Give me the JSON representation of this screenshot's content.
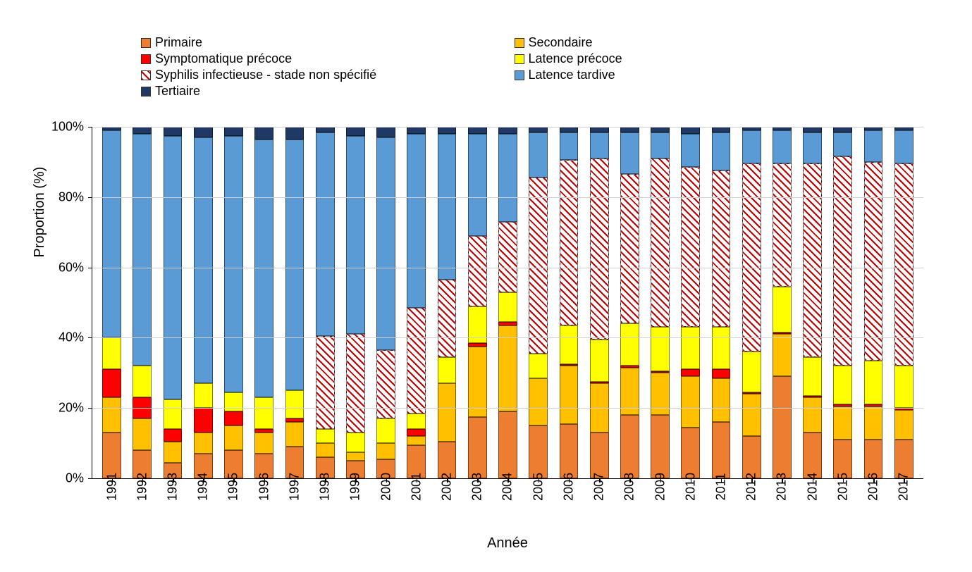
{
  "chart": {
    "type": "stacked-bar",
    "background_color": "#ffffff",
    "grid_color": "#d0d0d0",
    "axis_color": "#000000",
    "bar_width_ratio": 0.62,
    "yaxis": {
      "label": "Proportion (%)",
      "min": 0,
      "max": 100,
      "tick_step": 20,
      "tick_suffix": "%",
      "label_fontsize": 20,
      "tick_fontsize": 18
    },
    "xaxis": {
      "label": "Année",
      "label_fontsize": 20,
      "tick_fontsize": 18,
      "tick_rotation": -90
    },
    "legend": {
      "fontsize": 18,
      "columns": 2,
      "items": [
        {
          "key": "primaire",
          "label": "Primaire"
        },
        {
          "key": "secondaire",
          "label": "Secondaire"
        },
        {
          "key": "symptomatique",
          "label": "Symptomatique précoce"
        },
        {
          "key": "latence_precoce",
          "label": "Latence précoce"
        },
        {
          "key": "non_specifie",
          "label": "Syphilis infectieuse - stade non spécifié"
        },
        {
          "key": "latence_tardive",
          "label": "Latence tardive"
        },
        {
          "key": "tertiaire",
          "label": "Tertiaire"
        }
      ]
    },
    "series_meta": {
      "primaire": {
        "color": "#ed7d31",
        "pattern": "solid"
      },
      "secondaire": {
        "color": "#ffc000",
        "pattern": "solid"
      },
      "symptomatique": {
        "color": "#ff0000",
        "pattern": "solid"
      },
      "latence_precoce": {
        "color": "#ffff00",
        "pattern": "solid"
      },
      "non_specifie": {
        "color": "#c00000",
        "pattern": "diag-hatch",
        "pattern_bg": "#ffffff"
      },
      "latence_tardive": {
        "color": "#5b9bd5",
        "pattern": "solid"
      },
      "tertiaire": {
        "color": "#1f3864",
        "pattern": "solid"
      }
    },
    "stack_order": [
      "primaire",
      "secondaire",
      "symptomatique",
      "latence_precoce",
      "non_specifie",
      "latence_tardive",
      "tertiaire"
    ],
    "categories": [
      "1991",
      "1992",
      "1993",
      "1994",
      "1995",
      "1996",
      "1997",
      "1998",
      "1999",
      "2000",
      "2001",
      "2002",
      "2003",
      "2004",
      "2005",
      "2006",
      "2007",
      "2008",
      "2009",
      "2010",
      "2011",
      "2012",
      "2013",
      "2014",
      "2015",
      "2016",
      "2017"
    ],
    "data": {
      "primaire": [
        13,
        8,
        4.5,
        7,
        8,
        7,
        9,
        6,
        5,
        5.5,
        9.5,
        10.5,
        17.5,
        19,
        15,
        15.5,
        13,
        18,
        18,
        14.5,
        16,
        12,
        29,
        13,
        11,
        11,
        11
      ],
      "secondaire": [
        10,
        9,
        6,
        6,
        7,
        6,
        7,
        4,
        2.5,
        4.5,
        2.5,
        16.5,
        20,
        24.5,
        13.5,
        16.5,
        14,
        13.5,
        12,
        14.5,
        12.5,
        12,
        12,
        10,
        9.5,
        9.5,
        8.5
      ],
      "symptomatique": [
        8,
        6,
        3.5,
        7,
        4,
        1,
        1,
        0,
        0,
        0,
        2,
        0,
        1,
        1,
        0,
        0.5,
        0.5,
        0.5,
        0.5,
        2,
        2.5,
        0.5,
        0.5,
        0.5,
        0.5,
        0.5,
        0.5
      ],
      "latence_precoce": [
        9,
        9,
        8.5,
        7,
        5.5,
        9,
        8,
        4,
        5.5,
        7,
        4.5,
        7.5,
        10.5,
        8.5,
        7,
        11,
        12,
        12,
        12.5,
        12,
        12,
        11.5,
        13,
        11,
        11,
        12.5,
        12
      ],
      "non_specifie": [
        0,
        0,
        0,
        0,
        0,
        0,
        0,
        26.5,
        28,
        19.5,
        30,
        22,
        20,
        20,
        50,
        47,
        51.5,
        42.5,
        48,
        45.5,
        44.5,
        53.5,
        35,
        55,
        59.5,
        56.5,
        57.5
      ],
      "latence_tardive": [
        59,
        66,
        75,
        70,
        73,
        73.5,
        71.5,
        58,
        56.5,
        60.5,
        49.5,
        41.5,
        29,
        25,
        13,
        8,
        7.5,
        12,
        7.5,
        9.5,
        11,
        9.5,
        9.5,
        9,
        7,
        9,
        9.5
      ],
      "tertiaire": [
        1,
        2,
        2.5,
        3,
        2.5,
        3.5,
        3.5,
        1.5,
        2.5,
        3,
        2,
        2,
        2,
        2,
        1.5,
        1.5,
        1.5,
        1.5,
        1.5,
        2,
        1.5,
        1,
        1,
        1.5,
        1.5,
        1,
        1
      ]
    }
  }
}
